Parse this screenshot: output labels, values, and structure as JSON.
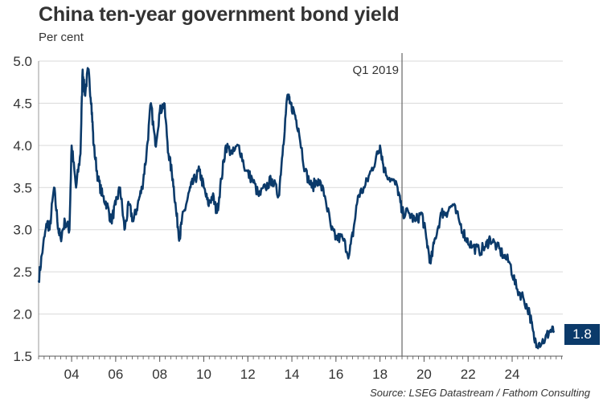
{
  "title": "China ten-year government bond yield",
  "subtitle": "Per cent",
  "source": "Source: LSEG Datastream / Fathom Consulting",
  "colors": {
    "line": "#0b3a6a",
    "grid": "#d9d9d9",
    "marker": "#666666",
    "label_box": "#0b3a6a"
  },
  "last_value_label": "1.8",
  "annotation": {
    "label": "Q1 2019",
    "x": 2019.0
  },
  "chart_data": {
    "type": "line",
    "title": "China ten-year government bond yield",
    "ylabel": "Per cent",
    "xlim": [
      2002.5,
      2026.3
    ],
    "ylim": [
      1.5,
      5.0
    ],
    "yticks": [
      1.5,
      2.0,
      2.5,
      3.0,
      3.5,
      4.0,
      4.5,
      5.0
    ],
    "ytick_labels": [
      "1.5",
      "2.0",
      "2.5",
      "3.0",
      "3.5",
      "4.0",
      "4.5",
      "5.0"
    ],
    "xticks": [
      2004,
      2006,
      2008,
      2010,
      2012,
      2014,
      2016,
      2018,
      2020,
      2022,
      2024
    ],
    "xtick_labels": [
      "04",
      "06",
      "08",
      "10",
      "12",
      "14",
      "16",
      "18",
      "20",
      "22",
      "24"
    ],
    "grid": "horizontal",
    "series": [
      {
        "x": [
          2002.5,
          2002.7,
          2002.9,
          2003.0,
          2003.2,
          2003.4,
          2003.5,
          2003.7,
          2003.9,
          2004.0,
          2004.2,
          2004.4,
          2004.5,
          2004.6,
          2004.75,
          2004.9,
          2005.0,
          2005.2,
          2005.4,
          2005.6,
          2005.8,
          2006.0,
          2006.2,
          2006.4,
          2006.6,
          2006.8,
          2007.0,
          2007.2,
          2007.4,
          2007.6,
          2007.8,
          2008.0,
          2008.2,
          2008.4,
          2008.6,
          2008.75,
          2008.9,
          2009.0,
          2009.2,
          2009.4,
          2009.6,
          2009.8,
          2010.0,
          2010.2,
          2010.4,
          2010.6,
          2010.8,
          2011.0,
          2011.3,
          2011.6,
          2011.9,
          2012.2,
          2012.5,
          2012.8,
          2013.1,
          2013.4,
          2013.6,
          2013.8,
          2013.9,
          2014.1,
          2014.3,
          2014.6,
          2014.9,
          2015.2,
          2015.5,
          2015.8,
          2016.0,
          2016.3,
          2016.6,
          2016.8,
          2017.0,
          2017.3,
          2017.6,
          2017.9,
          2018.0,
          2018.2,
          2018.5,
          2018.8,
          2019.0,
          2019.3,
          2019.6,
          2019.9,
          2020.1,
          2020.3,
          2020.5,
          2020.8,
          2021.0,
          2021.3,
          2021.6,
          2021.9,
          2022.2,
          2022.5,
          2022.8,
          2023.0,
          2023.3,
          2023.6,
          2023.9,
          2024.2,
          2024.5,
          2024.8,
          2025.0,
          2025.2,
          2025.5,
          2025.7,
          2025.9
        ],
        "y": [
          2.4,
          2.8,
          3.1,
          3.0,
          3.5,
          3.0,
          2.9,
          3.1,
          3.0,
          4.0,
          3.5,
          3.9,
          4.9,
          4.6,
          4.9,
          4.5,
          4.0,
          3.6,
          3.4,
          3.3,
          3.1,
          3.3,
          3.5,
          3.0,
          3.3,
          3.1,
          3.3,
          3.5,
          3.9,
          4.5,
          4.0,
          4.4,
          4.5,
          3.9,
          3.6,
          3.2,
          2.9,
          3.1,
          3.3,
          3.5,
          3.6,
          3.7,
          3.5,
          3.3,
          3.4,
          3.2,
          3.6,
          4.0,
          3.9,
          4.0,
          3.7,
          3.6,
          3.4,
          3.5,
          3.6,
          3.4,
          4.0,
          4.6,
          4.5,
          4.4,
          4.2,
          3.7,
          3.5,
          3.6,
          3.4,
          3.0,
          2.9,
          2.9,
          2.7,
          3.0,
          3.4,
          3.5,
          3.7,
          3.9,
          4.0,
          3.7,
          3.6,
          3.5,
          3.2,
          3.2,
          3.1,
          3.2,
          2.9,
          2.6,
          2.9,
          3.2,
          3.2,
          3.3,
          3.1,
          2.9,
          2.8,
          2.75,
          2.8,
          2.9,
          2.8,
          2.7,
          2.6,
          2.3,
          2.2,
          2.0,
          1.7,
          1.65,
          1.7,
          1.8,
          1.8
        ]
      }
    ]
  }
}
